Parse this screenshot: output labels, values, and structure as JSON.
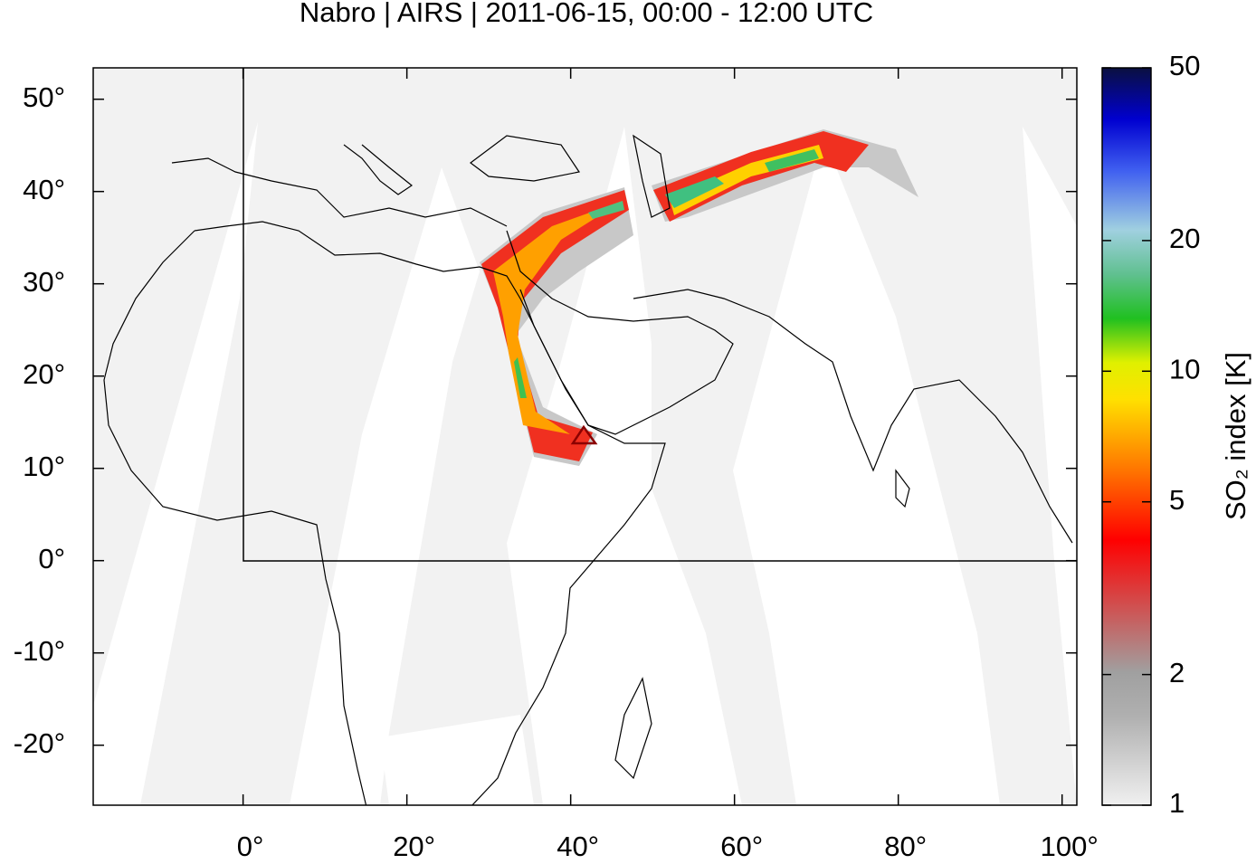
{
  "chart_data": {
    "type": "map",
    "title": "Nabro | AIRS | 2011-06-15, 00:00 - 12:00 UTC",
    "xlim": [
      -18.3,
      101.8
    ],
    "xticks": [
      {
        "value": 0,
        "label": "0°"
      },
      {
        "value": 20,
        "label": "20°"
      },
      {
        "value": 40,
        "label": "40°"
      },
      {
        "value": 60,
        "label": "60°"
      },
      {
        "value": 80,
        "label": "80°"
      },
      {
        "value": 100,
        "label": "100°"
      }
    ],
    "ylim": [
      -26.5,
      53.4
    ],
    "yticks": [
      {
        "value": -20,
        "label": "-20°"
      },
      {
        "value": -10,
        "label": "-10°"
      },
      {
        "value": 0,
        "label": "0°"
      },
      {
        "value": 10,
        "label": "10°"
      },
      {
        "value": 20,
        "label": "20°"
      },
      {
        "value": 30,
        "label": "30°"
      },
      {
        "value": 40,
        "label": "40°"
      },
      {
        "value": 50,
        "label": "50°"
      }
    ],
    "colorbar": {
      "label": "SO₂ index [K]",
      "log_scale": true,
      "lim": [
        1,
        50
      ],
      "ticks": [
        1,
        2,
        5,
        10,
        20,
        50
      ]
    }
  }
}
